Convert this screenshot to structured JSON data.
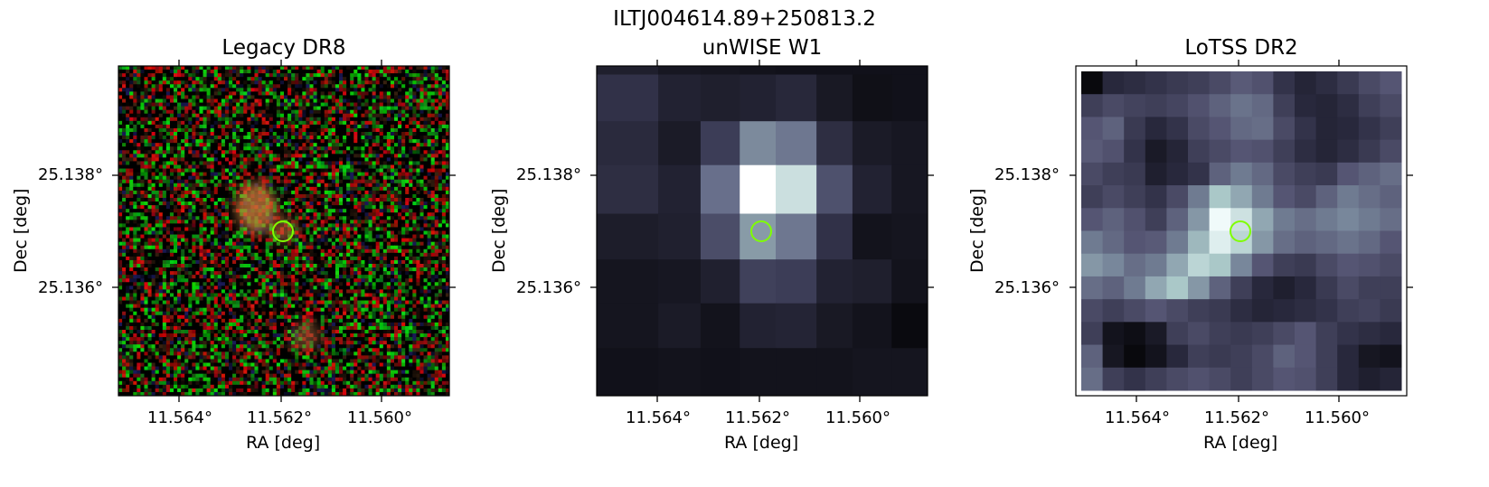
{
  "figure": {
    "suptitle": "ILTJ004614.89+250813.2"
  },
  "panels": [
    {
      "title": "Legacy DR8",
      "xlabel": "RA [deg]",
      "ylabel": "Dec [deg]",
      "xticks": [
        "11.564°",
        "11.562°",
        "11.560°"
      ],
      "yticks": [
        "25.138°",
        "25.136°"
      ]
    },
    {
      "title": "unWISE W1",
      "xlabel": "RA [deg]",
      "ylabel": "Dec [deg]",
      "xticks": [
        "11.564°",
        "11.562°",
        "11.560°"
      ],
      "yticks": [
        "25.138°",
        "25.136°"
      ]
    },
    {
      "title": "LoTSS DR2",
      "xlabel": "RA [deg]",
      "ylabel": "Dec [deg]",
      "xticks": [
        "11.564°",
        "11.562°",
        "11.560°"
      ],
      "yticks": [
        "25.138°",
        "25.136°"
      ]
    }
  ],
  "colors": {
    "marker": "#7fff00",
    "axes": "#000000"
  }
}
